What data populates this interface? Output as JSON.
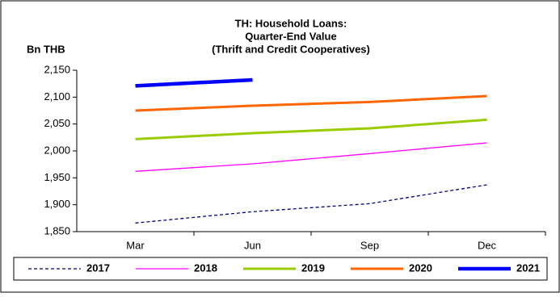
{
  "chart_data": {
    "type": "line",
    "title": [
      "TH: Household Loans:",
      "Quarter-End Value",
      "(Thrift and Credit Cooperatives)"
    ],
    "y_label": "Bn THB",
    "categories": [
      "Mar",
      "Jun",
      "Sep",
      "Dec"
    ],
    "ylim": [
      1850,
      2150
    ],
    "yticks": [
      {
        "value": 1850,
        "label": "1,850"
      },
      {
        "value": 1900,
        "label": "1,900"
      },
      {
        "value": 1950,
        "label": "1,950"
      },
      {
        "value": 2000,
        "label": "2,000"
      },
      {
        "value": 2050,
        "label": "2,050"
      },
      {
        "value": 2100,
        "label": "2,100"
      },
      {
        "value": 2150,
        "label": "2,150"
      }
    ],
    "legend": "bottom",
    "series": [
      {
        "name": "2017",
        "color": "#000080",
        "line_style": "dashed",
        "line_weight": "thin",
        "values": [
          1866,
          1887,
          1902,
          1937
        ]
      },
      {
        "name": "2018",
        "color": "#ff00ff",
        "line_style": "solid",
        "line_weight": "thin",
        "values": [
          1962,
          1976,
          1995,
          2015
        ]
      },
      {
        "name": "2019",
        "color": "#99cc00",
        "line_style": "solid",
        "line_weight": "thick",
        "values": [
          2022,
          2033,
          2042,
          2058
        ]
      },
      {
        "name": "2020",
        "color": "#ff6600",
        "line_style": "solid",
        "line_weight": "thick",
        "values": [
          2075,
          2084,
          2091,
          2102
        ]
      },
      {
        "name": "2021",
        "color": "#0000ff",
        "line_style": "solid",
        "line_weight": "heavy",
        "values": [
          2121,
          2132,
          null,
          null
        ]
      }
    ]
  }
}
